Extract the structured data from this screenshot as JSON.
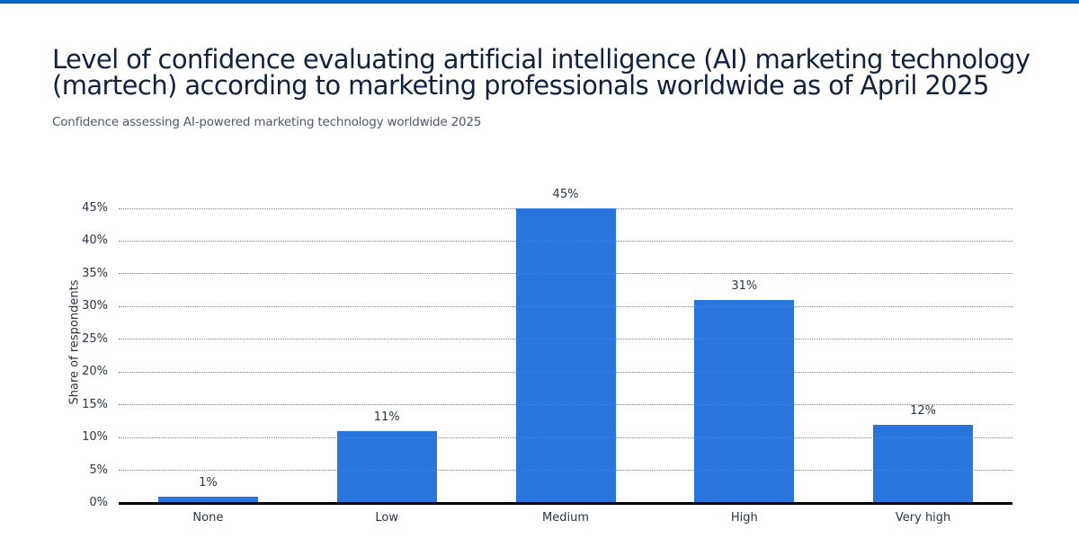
{
  "header": {
    "title": "Level of confidence evaluating artificial intelligence (AI) marketing technology (martech) according to marketing professionals worldwide as of April 2025",
    "title_line1": "Level of confidence evaluating artificial intelligence (AI) marketing technology",
    "title_line2": "(martech) according to marketing professionals worldwide as of April 2025",
    "subtitle": "Confidence assessing AI-powered marketing technology worldwide 2025"
  },
  "colors": {
    "accent_bar": "#0666c7",
    "bar": "#2a75dc",
    "title": "#0f2340",
    "axis_text": "#2a3646"
  },
  "chart_data": {
    "type": "bar",
    "title": "Level of confidence evaluating artificial intelligence (AI) marketing technology (martech) according to marketing professionals worldwide as of April 2025",
    "subtitle": "Confidence assessing AI-powered marketing technology worldwide 2025",
    "categories": [
      "None",
      "Low",
      "Medium",
      "High",
      "Very high"
    ],
    "values": [
      1,
      11,
      45,
      31,
      12
    ],
    "value_labels": [
      "1%",
      "11%",
      "45%",
      "31%",
      "12%"
    ],
    "xlabel": "",
    "ylabel": "Share of respondents",
    "ylim": [
      0,
      45
    ],
    "yticks": [
      "0%",
      "5%",
      "10%",
      "15%",
      "20%",
      "25%",
      "30%",
      "35%",
      "40%",
      "45%"
    ],
    "grid": true,
    "legend": null
  }
}
